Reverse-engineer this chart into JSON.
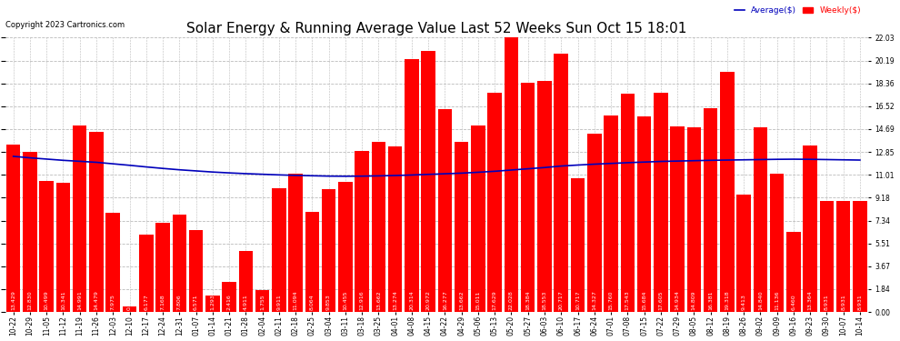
{
  "title": "Solar Energy & Running Average Value Last 52 Weeks Sun Oct 15 18:01",
  "copyright": "Copyright 2023 Cartronics.com",
  "legend_avg": "Average($)",
  "legend_weekly": "Weekly($)",
  "bar_color": "#ff0000",
  "avg_line_color": "#0000bb",
  "background_color": "#ffffff",
  "plot_bg_color": "#ffffff",
  "grid_color": "#bbbbbb",
  "ylabel_right_values": [
    0.0,
    1.84,
    3.67,
    5.51,
    7.34,
    9.18,
    11.01,
    12.85,
    14.69,
    16.52,
    18.36,
    20.19,
    22.03
  ],
  "categories": [
    "10-22",
    "10-29",
    "11-05",
    "11-12",
    "11-19",
    "11-26",
    "12-03",
    "12-10",
    "12-17",
    "12-24",
    "12-31",
    "01-07",
    "01-14",
    "01-21",
    "01-28",
    "02-04",
    "02-11",
    "02-18",
    "02-25",
    "03-04",
    "03-11",
    "03-18",
    "03-25",
    "04-01",
    "04-08",
    "04-15",
    "04-22",
    "04-29",
    "05-06",
    "05-13",
    "05-20",
    "05-27",
    "06-03",
    "06-10",
    "06-17",
    "06-24",
    "07-01",
    "07-08",
    "07-15",
    "07-22",
    "07-29",
    "08-05",
    "08-12",
    "08-19",
    "08-26",
    "09-02",
    "09-09",
    "09-16",
    "09-23",
    "09-30",
    "10-07",
    "10-14"
  ],
  "weekly_values": [
    13.429,
    12.83,
    10.499,
    10.341,
    14.991,
    14.479,
    7.975,
    0.431,
    6.177,
    7.168,
    7.806,
    6.571,
    1.293,
    2.416,
    4.911,
    1.755,
    9.911,
    11.094,
    8.064,
    9.853,
    10.455,
    12.916,
    13.662,
    13.274,
    20.314,
    20.972,
    16.277,
    13.662,
    15.011,
    17.629,
    22.028,
    18.384,
    18.553,
    20.717,
    10.717,
    14.327,
    15.76,
    17.543,
    15.684,
    17.605,
    14.934,
    14.809,
    16.381,
    19.318,
    9.413,
    14.84,
    11.136,
    6.46,
    13.364,
    8.931,
    8.931,
    8.931
  ],
  "avg_values": [
    12.5,
    12.38,
    12.28,
    12.18,
    12.1,
    12.02,
    11.9,
    11.78,
    11.65,
    11.53,
    11.42,
    11.33,
    11.24,
    11.17,
    11.11,
    11.06,
    11.01,
    10.97,
    10.94,
    10.91,
    10.9,
    10.91,
    10.93,
    10.96,
    11.0,
    11.05,
    11.1,
    11.15,
    11.22,
    11.3,
    11.4,
    11.5,
    11.6,
    11.72,
    11.8,
    11.87,
    11.93,
    11.99,
    12.04,
    12.09,
    12.12,
    12.15,
    12.18,
    12.2,
    12.22,
    12.24,
    12.26,
    12.27,
    12.26,
    12.24,
    12.22,
    12.2
  ],
  "ylim": [
    0,
    22.03
  ],
  "title_fontsize": 11,
  "tick_fontsize": 5.5,
  "value_fontsize": 4.5
}
